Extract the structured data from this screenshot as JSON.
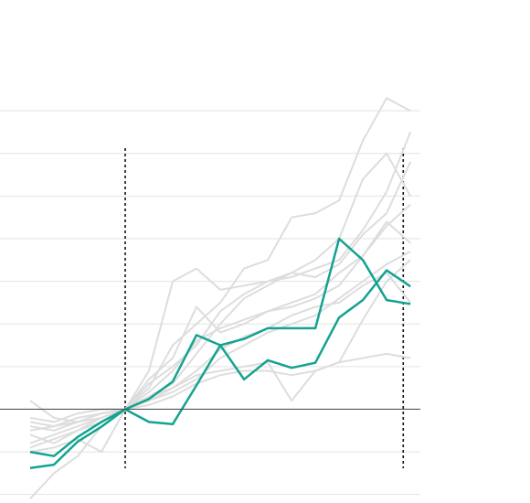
{
  "chart_data": {
    "type": "line",
    "x": [
      0,
      1,
      2,
      3,
      4,
      5,
      6,
      7,
      8,
      9,
      10,
      11,
      12,
      13,
      14,
      15,
      16
    ],
    "xlim": [
      -1.27,
      16.42
    ],
    "ylim": [
      -2.2,
      9.6
    ],
    "yticks": [
      -2,
      -1,
      0,
      1,
      2,
      3,
      4,
      5,
      6,
      7
    ],
    "grid": true,
    "zero_line": true,
    "vlines": [
      4,
      15.7
    ],
    "series": [
      {
        "color": "#dddddd",
        "values": [
          -0.8,
          -0.6,
          -0.4,
          -0.2,
          0,
          0.9,
          3.0,
          3.3,
          2.8,
          2.9,
          3.0,
          3.1,
          3.3,
          3.5,
          4.2,
          5.1,
          6.5
        ]
      },
      {
        "color": "#dddddd",
        "values": [
          -0.5,
          -0.4,
          -0.3,
          -0.1,
          0,
          0.5,
          1.5,
          2.0,
          2.5,
          3.3,
          3.5,
          4.5,
          4.6,
          4.9,
          6.3,
          7.3,
          7.0
        ]
      },
      {
        "color": "#dddddd",
        "values": [
          -0.3,
          -0.4,
          -0.2,
          -0.1,
          0,
          0.3,
          0.6,
          1.3,
          2.0,
          2.6,
          2.9,
          3.2,
          3.5,
          4.0,
          5.4,
          6.0,
          5.0
        ]
      },
      {
        "color": "#dddddd",
        "values": [
          -2.1,
          -1.5,
          -1.1,
          -0.4,
          0,
          0.2,
          0.4,
          0.7,
          1.2,
          1.5,
          1.8,
          2.0,
          2.2,
          2.6,
          3.0,
          3.4,
          3.7
        ]
      },
      {
        "color": "#dddddd",
        "values": [
          -0.2,
          -0.3,
          -0.1,
          0,
          0,
          0.4,
          0.9,
          1.6,
          1.9,
          2.1,
          2.3,
          2.4,
          2.6,
          2.9,
          3.6,
          4.3,
          4.8
        ]
      },
      {
        "color": "#dddddd",
        "values": [
          -0.6,
          -0.8,
          -0.5,
          -0.2,
          0,
          0.1,
          0.3,
          0.6,
          0.8,
          0.9,
          0.9,
          0.8,
          0.9,
          1.1,
          1.2,
          1.3,
          1.2
        ]
      },
      {
        "color": "#dddddd",
        "values": [
          0.2,
          -0.2,
          -0.3,
          -0.1,
          0,
          0.2,
          0.5,
          0.9,
          1.4,
          1.7,
          1.9,
          2.2,
          2.4,
          2.5,
          2.9,
          3.2,
          2.5
        ]
      },
      {
        "color": "#dddddd",
        "values": [
          -1.0,
          -0.9,
          -0.7,
          -1.0,
          0,
          0.7,
          1.2,
          2.4,
          1.8,
          2.0,
          2.3,
          2.5,
          2.7,
          3.2,
          3.6,
          4.4,
          3.9
        ]
      },
      {
        "color": "#dddddd",
        "values": [
          -0.4,
          -0.5,
          -0.3,
          -0.2,
          0,
          0.3,
          0.5,
          0.8,
          0.9,
          1.0,
          1.1,
          0.2,
          0.9,
          1.1,
          2.1,
          3.0,
          3.5
        ]
      },
      {
        "color": "#dddddd",
        "values": [
          -0.9,
          -0.7,
          -0.5,
          -0.3,
          0,
          0.6,
          1.0,
          1.5,
          2.3,
          2.7,
          3.0,
          3.2,
          3.1,
          3.4,
          4.1,
          4.6,
          5.8
        ]
      },
      {
        "color": "#13a390",
        "values": [
          -1.0,
          -1.1,
          -0.65,
          -0.3,
          0,
          0.24,
          0.65,
          1.74,
          1.5,
          1.65,
          1.9,
          1.9,
          1.9,
          4.0,
          3.5,
          2.56,
          2.47
        ]
      },
      {
        "color": "#13a390",
        "values": [
          -1.38,
          -1.3,
          -0.76,
          -0.41,
          0,
          -0.3,
          -0.35,
          0.56,
          1.5,
          0.7,
          1.15,
          0.97,
          1.09,
          2.15,
          2.56,
          3.26,
          2.88
        ]
      }
    ]
  }
}
